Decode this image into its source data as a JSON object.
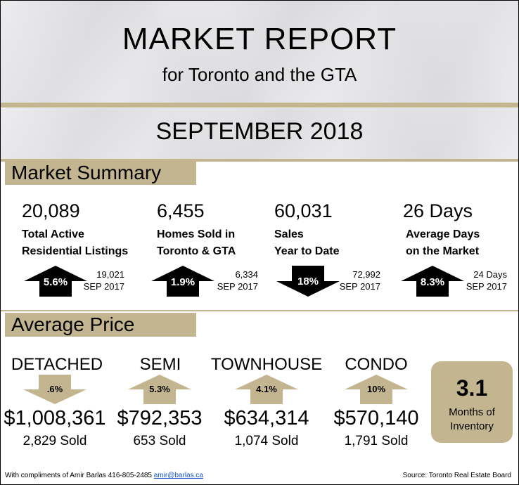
{
  "header": {
    "title": "MARKET REPORT",
    "subtitle": "for Toronto and the GTA",
    "month": "SEPTEMBER 2018"
  },
  "colors": {
    "accent_tan": "#c2b590",
    "arrow_black": "#000000"
  },
  "summary": {
    "heading": "Market Summary",
    "stats": [
      {
        "value": "20,089",
        "label_line1": "Total Active",
        "label_line2": "Residential Listings",
        "direction": "up",
        "pct": "5.6%",
        "prev_value": "19,021",
        "prev_period": "SEP 2017"
      },
      {
        "value": "6,455",
        "label_line1": "Homes Sold in",
        "label_line2": "Toronto & GTA",
        "direction": "up",
        "pct": "1.9%",
        "prev_value": "6,334",
        "prev_period": "SEP 2017"
      },
      {
        "value": "60,031",
        "label_line1": "Sales",
        "label_line2": "Year to Date",
        "direction": "down",
        "pct": "18%",
        "prev_value": "72,992",
        "prev_period": "SEP 2017"
      },
      {
        "value": "26 Days",
        "label_line1": "Average Days",
        "label_line2": "on the Market",
        "direction": "up",
        "pct": "8.3%",
        "prev_value": "24 Days",
        "prev_period": "SEP 2017"
      }
    ]
  },
  "average_price": {
    "heading": "Average Price",
    "types": [
      {
        "label": "DETACHED",
        "direction": "down",
        "pct": ".6%",
        "price": "$1,008,361",
        "sold": "2,829 Sold"
      },
      {
        "label": "SEMI",
        "direction": "up",
        "pct": "5.3%",
        "price": "$792,353",
        "sold": "653 Sold"
      },
      {
        "label": "TOWNHOUSE",
        "direction": "up",
        "pct": "4.1%",
        "price": "$634,314",
        "sold": "1,074 Sold"
      },
      {
        "label": "CONDO",
        "direction": "up",
        "pct": "10%",
        "price": "$570,140",
        "sold": "1,791 Sold"
      }
    ],
    "inventory": {
      "value": "3.1",
      "label_line1": "Months of",
      "label_line2": "Inventory"
    }
  },
  "footer": {
    "compliments": "With compliments of Amir Barlas 416-805-2485",
    "email": "amir@barlas.ca",
    "source": "Source: Toronto Real Estate Board"
  }
}
